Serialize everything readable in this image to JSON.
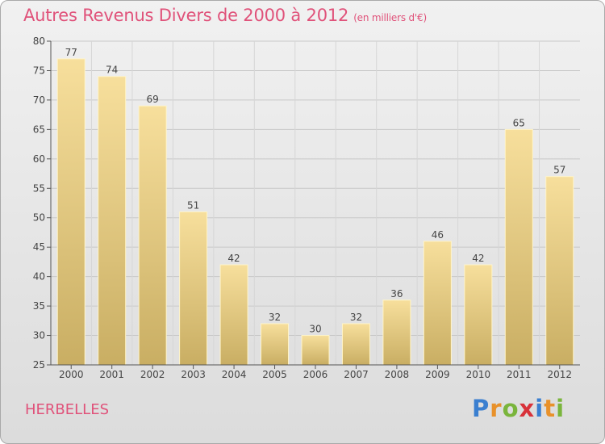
{
  "header": {
    "title": "Autres Revenus Divers de 2000 à 2012",
    "unit": "(en milliers d'€)"
  },
  "footer": {
    "commune": "HERBELLES",
    "brand_letters": [
      "P",
      "r",
      "o",
      "x",
      "i",
      "t",
      "i"
    ],
    "brand_colors": [
      "#3a7fd0",
      "#e8912a",
      "#7ab53c",
      "#d8323a",
      "#3a7fd0",
      "#e8912a",
      "#7ab53c"
    ]
  },
  "colors": {
    "title": "#e0527a",
    "bar_light": "#f7df9c",
    "bar_dark": "#c9ae63",
    "grid": "#c8c8c8"
  },
  "chart_data": {
    "type": "bar",
    "title": "Autres Revenus Divers de 2000 à 2012",
    "subtitle": "(en milliers d'€)",
    "categories": [
      "2000",
      "2001",
      "2002",
      "2003",
      "2004",
      "2005",
      "2006",
      "2007",
      "2008",
      "2009",
      "2010",
      "2011",
      "2012"
    ],
    "values": [
      77,
      74,
      69,
      51,
      42,
      32,
      30,
      32,
      36,
      46,
      42,
      65,
      57
    ],
    "ylim": [
      25,
      80
    ],
    "yticks": [
      25,
      30,
      35,
      40,
      45,
      50,
      55,
      60,
      65,
      70,
      75,
      80
    ],
    "grid": true,
    "data_labels": true
  }
}
